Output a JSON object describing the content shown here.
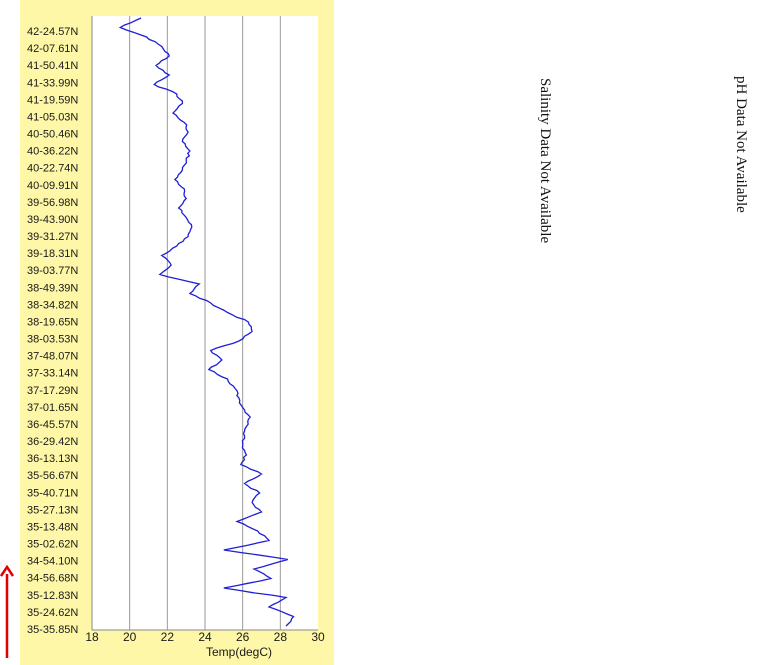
{
  "chart_data": {
    "type": "line",
    "orientation": "vertical-profile",
    "xlabel": "Temp(degC)",
    "xlim": [
      18,
      30
    ],
    "x_ticks": [
      18,
      20,
      22,
      24,
      26,
      28,
      30
    ],
    "y_tick_labels": [
      "42-24.57N",
      "42-07.61N",
      "41-50.41N",
      "41-33.99N",
      "41-19.59N",
      "41-05.03N",
      "40-50.46N",
      "40-36.22N",
      "40-22.74N",
      "40-09.91N",
      "39-56.98N",
      "39-43.90N",
      "39-31.27N",
      "39-18.31N",
      "39-03.77N",
      "38-49.39N",
      "38-34.82N",
      "38-19.65N",
      "38-03.53N",
      "37-48.07N",
      "37-33.14N",
      "37-17.29N",
      "37-01.65N",
      "36-45.57N",
      "36-29.42N",
      "36-13.13N",
      "35-56.67N",
      "35-40.71N",
      "35-27.13N",
      "35-13.48N",
      "35-02.62N",
      "34-54.10N",
      "34-56.68N",
      "35-12.83N",
      "35-24.62N",
      "35-35.85N"
    ],
    "grid": true,
    "series": [
      {
        "color": "#1f1fd6",
        "temps": [
          20.6,
          19.5,
          20.9,
          21.7,
          22.1,
          21.4,
          22.1,
          21.3,
          22.5,
          22.8,
          22.3,
          22.9,
          23.1,
          22.8,
          23.2,
          23.0,
          22.8,
          22.4,
          22.9,
          23.0,
          22.6,
          23.0,
          23.3,
          23.1,
          22.5,
          21.7,
          22.2,
          21.6,
          23.7,
          23.2,
          24.3,
          25.2,
          26.3,
          26.5,
          25.8,
          24.3,
          24.9,
          24.2,
          25.2,
          25.6,
          25.8,
          26.0,
          26.4,
          26.2,
          26.1,
          26.0,
          26.2,
          25.9,
          27.0,
          26.1,
          26.9,
          26.5,
          27.0,
          25.7,
          26.8,
          27.4,
          25.0,
          28.4,
          26.6,
          27.5,
          25.0,
          28.3,
          27.4,
          28.7,
          28.3
        ]
      }
    ]
  },
  "notes": {
    "salinity": "Salinity Data Not Available",
    "ph": "pH Data Not Available"
  },
  "indicator": {
    "color": "#e00000"
  }
}
